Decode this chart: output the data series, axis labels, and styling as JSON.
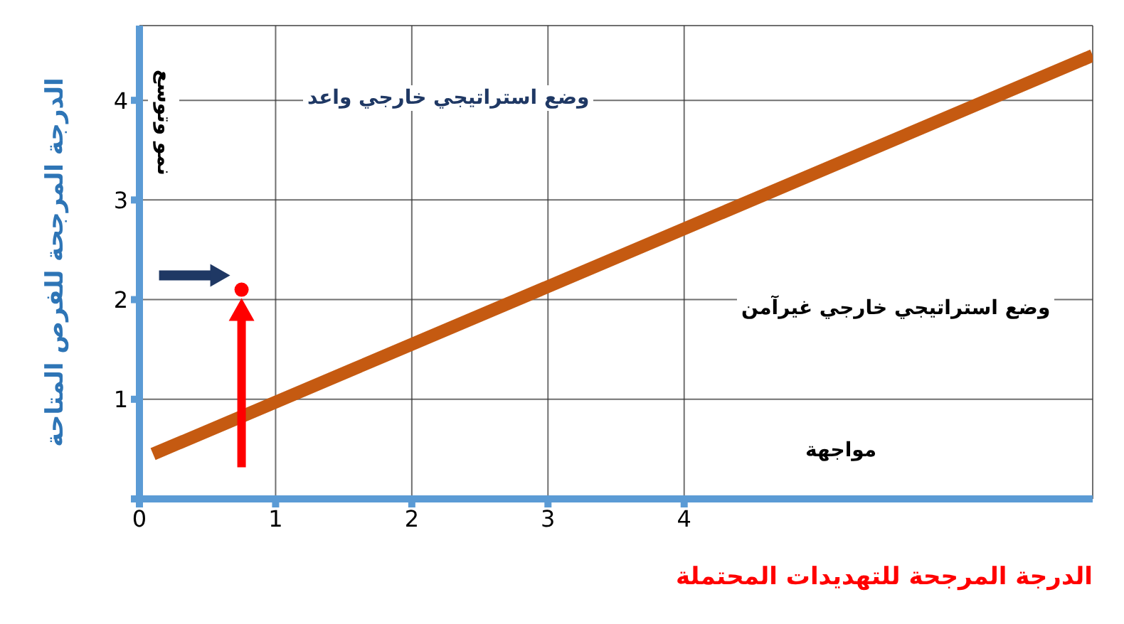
{
  "chart_data": {
    "type": "scatter",
    "xlabel": "الدرجة المرجحة للتهديدات المحتملة",
    "ylabel": "الدرجة المرجحة للفرص المتاحة",
    "xlim": [
      0,
      7
    ],
    "ylim": [
      0,
      4.75
    ],
    "xticks": [
      0,
      1,
      2,
      3,
      4
    ],
    "yticks": [
      {
        "value": 0,
        "label": null
      },
      1,
      2,
      3,
      4
    ],
    "grid": true,
    "series": [
      {
        "type": "line",
        "x": [
          0.1,
          7
        ],
        "values": [
          0.45,
          4.45
        ],
        "color": "#c55a11"
      },
      {
        "x": [
          0.75
        ],
        "values": [
          2.1
        ],
        "color": "#ff0000"
      }
    ],
    "annotations": [
      "نمو وتوسع",
      "وضع استراتيجي خارجي واعد",
      "وضع استراتيجي خارجي غيرآمن",
      "مواجهة"
    ]
  }
}
